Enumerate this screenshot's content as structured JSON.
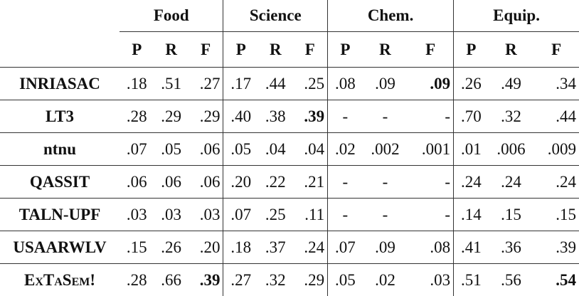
{
  "groups": [
    "Food",
    "Science",
    "Chem.",
    "Equip."
  ],
  "subheaders": [
    "P",
    "R",
    "F"
  ],
  "rows": [
    {
      "name": "INRIASAC",
      "values": [
        ".18",
        ".51",
        ".27",
        ".17",
        ".44",
        ".25",
        ".08",
        ".09",
        ".09",
        ".26",
        ".49",
        ".34"
      ],
      "bold": [
        8
      ]
    },
    {
      "name": "LT3",
      "values": [
        ".28",
        ".29",
        ".29",
        ".40",
        ".38",
        ".39",
        "-",
        "-",
        "-",
        ".70",
        ".32",
        ".44"
      ],
      "bold": [
        5
      ]
    },
    {
      "name": "ntnu",
      "values": [
        ".07",
        ".05",
        ".06",
        ".05",
        ".04",
        ".04",
        ".02",
        ".002",
        ".001",
        ".01",
        ".006",
        ".009"
      ],
      "bold": []
    },
    {
      "name": "QASSIT",
      "values": [
        ".06",
        ".06",
        ".06",
        ".20",
        ".22",
        ".21",
        "-",
        "-",
        "-",
        ".24",
        ".24",
        ".24"
      ],
      "bold": []
    },
    {
      "name": "TALN-UPF",
      "values": [
        ".03",
        ".03",
        ".03",
        ".07",
        ".25",
        ".11",
        "-",
        "-",
        "-",
        ".14",
        ".15",
        ".15"
      ],
      "bold": []
    },
    {
      "name": "USAARWLV",
      "values": [
        ".15",
        ".26",
        ".20",
        ".18",
        ".37",
        ".24",
        ".07",
        ".09",
        ".08",
        ".41",
        ".36",
        ".39"
      ],
      "bold": []
    },
    {
      "name": "ExTaSem!",
      "values": [
        ".28",
        ".66",
        ".39",
        ".27",
        ".32",
        ".29",
        ".05",
        ".02",
        ".03",
        ".51",
        ".56",
        ".54"
      ],
      "bold": [
        2,
        11
      ],
      "small_caps": true
    }
  ]
}
